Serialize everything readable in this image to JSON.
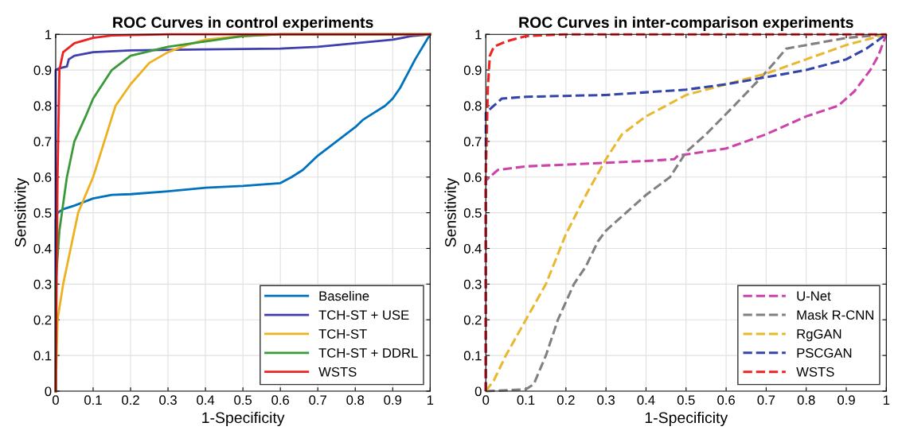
{
  "chart_data": [
    {
      "type": "line",
      "title": "ROC Curves in control experiments",
      "xlabel": "1-Specificity",
      "ylabel": "Sensitivity",
      "xlim": [
        0,
        1
      ],
      "ylim": [
        0,
        1
      ],
      "xticks": [
        0,
        0.1,
        0.2,
        0.3,
        0.4,
        0.5,
        0.6,
        0.7,
        0.8,
        0.9,
        1
      ],
      "yticks": [
        0,
        0.1,
        0.2,
        0.3,
        0.4,
        0.5,
        0.6,
        0.7,
        0.8,
        0.9,
        1
      ],
      "grid": true,
      "legend": "bottom right",
      "line_style": "solid",
      "series": [
        {
          "name": "Baseline",
          "color": "#0072bd",
          "x": [
            0,
            0,
            0.005,
            0.02,
            0.05,
            0.1,
            0.15,
            0.2,
            0.3,
            0.4,
            0.5,
            0.6,
            0.63,
            0.66,
            0.7,
            0.75,
            0.8,
            0.82,
            0.85,
            0.88,
            0.9,
            0.92,
            0.94,
            0.96,
            1
          ],
          "values": [
            0,
            0.48,
            0.5,
            0.51,
            0.52,
            0.54,
            0.55,
            0.552,
            0.56,
            0.57,
            0.575,
            0.583,
            0.6,
            0.62,
            0.66,
            0.7,
            0.74,
            0.76,
            0.78,
            0.8,
            0.82,
            0.85,
            0.89,
            0.93,
            1
          ]
        },
        {
          "name": "TCH-ST + USE",
          "color": "#3f3fae",
          "x": [
            0,
            0,
            0.01,
            0.03,
            0.035,
            0.05,
            0.1,
            0.2,
            0.4,
            0.6,
            0.7,
            0.8,
            0.9,
            0.95,
            1
          ],
          "values": [
            0,
            0.9,
            0.905,
            0.91,
            0.93,
            0.94,
            0.95,
            0.955,
            0.958,
            0.96,
            0.965,
            0.975,
            0.985,
            0.995,
            1
          ]
        },
        {
          "name": "TCH-ST",
          "color": "#edb120",
          "x": [
            0,
            0.005,
            0.02,
            0.04,
            0.06,
            0.1,
            0.13,
            0.16,
            0.2,
            0.25,
            0.3,
            0.35,
            0.4,
            0.5,
            0.6,
            1
          ],
          "values": [
            0,
            0.2,
            0.3,
            0.4,
            0.5,
            0.6,
            0.7,
            0.8,
            0.86,
            0.92,
            0.95,
            0.97,
            0.985,
            0.995,
            1,
            1
          ]
        },
        {
          "name": "TCH-ST + DDRL",
          "color": "#3a9a3a",
          "x": [
            0,
            0,
            0.01,
            0.03,
            0.05,
            0.08,
            0.1,
            0.15,
            0.2,
            0.3,
            0.4,
            0.5,
            0.6,
            1
          ],
          "values": [
            0,
            0.3,
            0.45,
            0.6,
            0.7,
            0.77,
            0.82,
            0.9,
            0.94,
            0.965,
            0.98,
            0.995,
            1,
            1
          ]
        },
        {
          "name": "WSTS",
          "color": "#ee2020",
          "x": [
            0,
            0.005,
            0.01,
            0.02,
            0.05,
            0.1,
            0.15,
            0.3,
            1
          ],
          "values": [
            0,
            0.6,
            0.9,
            0.95,
            0.975,
            0.99,
            0.997,
            1,
            1
          ]
        }
      ]
    },
    {
      "type": "line",
      "title": "ROC Curves in inter-comparison experiments",
      "xlabel": "1-Specificity",
      "ylabel": "Sensitivity",
      "xlim": [
        0,
        1
      ],
      "ylim": [
        0,
        1
      ],
      "xticks": [
        0,
        0.1,
        0.2,
        0.3,
        0.4,
        0.5,
        0.6,
        0.7,
        0.8,
        0.9,
        1
      ],
      "yticks": [
        0,
        0.1,
        0.2,
        0.3,
        0.4,
        0.5,
        0.6,
        0.7,
        0.8,
        0.9,
        1
      ],
      "grid": true,
      "legend": "bottom right",
      "line_style": "dashed",
      "series": [
        {
          "name": "U-Net",
          "color": "#cc44aa",
          "x": [
            0,
            0,
            0.01,
            0.03,
            0.1,
            0.3,
            0.4,
            0.47,
            0.48,
            0.6,
            0.7,
            0.8,
            0.88,
            0.92,
            0.96,
            0.98,
            1
          ],
          "values": [
            0,
            0.59,
            0.6,
            0.62,
            0.63,
            0.64,
            0.645,
            0.65,
            0.66,
            0.68,
            0.72,
            0.77,
            0.8,
            0.84,
            0.9,
            0.94,
            1
          ]
        },
        {
          "name": "Mask R-CNN",
          "color": "#808080",
          "x": [
            0,
            0.1,
            0.12,
            0.15,
            0.18,
            0.2,
            0.22,
            0.25,
            0.28,
            0.3,
            0.35,
            0.4,
            0.46,
            0.5,
            0.55,
            0.62,
            0.68,
            0.72,
            0.75,
            0.8,
            0.9,
            1
          ],
          "values": [
            0,
            0.005,
            0.02,
            0.1,
            0.2,
            0.25,
            0.3,
            0.35,
            0.42,
            0.45,
            0.5,
            0.55,
            0.6,
            0.67,
            0.72,
            0.8,
            0.87,
            0.92,
            0.96,
            0.97,
            0.99,
            1
          ]
        },
        {
          "name": "RgGAN",
          "color": "#e8b830",
          "x": [
            0,
            0.02,
            0.05,
            0.1,
            0.15,
            0.2,
            0.25,
            0.3,
            0.34,
            0.4,
            0.5,
            0.6,
            0.7,
            0.8,
            0.9,
            1
          ],
          "values": [
            0,
            0.03,
            0.1,
            0.2,
            0.3,
            0.44,
            0.55,
            0.65,
            0.72,
            0.77,
            0.83,
            0.86,
            0.89,
            0.93,
            0.97,
            1
          ]
        },
        {
          "name": "PSCGAN",
          "color": "#3344aa",
          "x": [
            0,
            0,
            0.02,
            0.04,
            0.1,
            0.3,
            0.5,
            0.6,
            0.7,
            0.8,
            0.9,
            0.95,
            1
          ],
          "values": [
            0,
            0.78,
            0.8,
            0.82,
            0.825,
            0.83,
            0.845,
            0.86,
            0.88,
            0.9,
            0.93,
            0.96,
            1
          ]
        },
        {
          "name": "WSTS",
          "color": "#ee2222",
          "x": [
            0,
            0,
            0.005,
            0.01,
            0.02,
            0.05,
            0.1,
            0.2,
            1
          ],
          "values": [
            0,
            0.6,
            0.85,
            0.94,
            0.965,
            0.98,
            0.995,
            1,
            1
          ]
        }
      ]
    }
  ]
}
